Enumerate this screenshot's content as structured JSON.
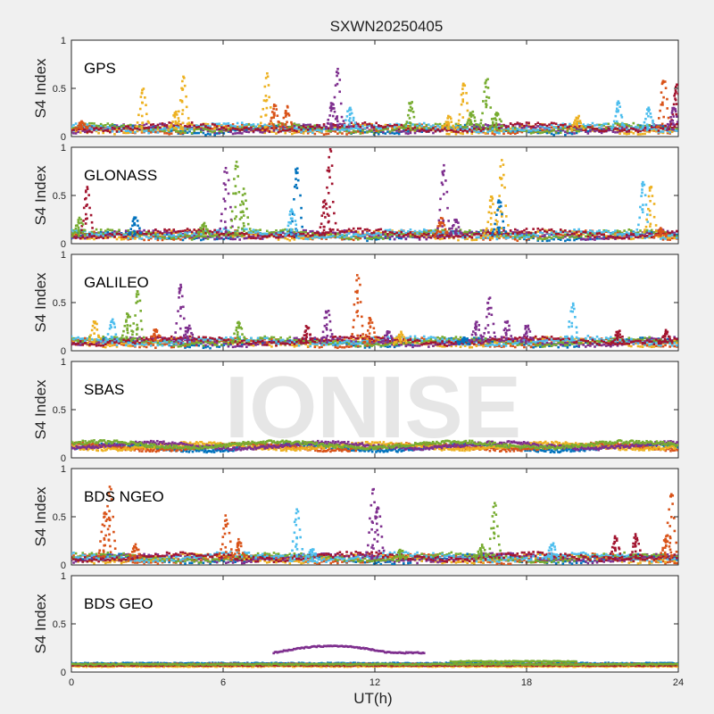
{
  "title": "SXWN20250405",
  "xlabel": "UT(h)",
  "watermark": "IONISE",
  "colors": {
    "background": "#f0f0f0",
    "axes_bg": "#ffffff",
    "series": [
      "#0072BD",
      "#D95319",
      "#EDB120",
      "#7E2F8E",
      "#77AC30",
      "#4DBEEE",
      "#A2142F"
    ]
  },
  "chart_data": [
    {
      "type": "scatter",
      "panel": "GPS",
      "ylabel": "S4 Index",
      "xlim": [
        0,
        24
      ],
      "ylim": [
        0,
        1
      ],
      "xticks": [
        0,
        6,
        12,
        18,
        24
      ],
      "yticks": [
        0,
        0.5,
        1
      ],
      "baseline": 0.07,
      "spikes": [
        [
          0.4,
          0.15,
          1
        ],
        [
          2.8,
          0.5,
          2
        ],
        [
          4.4,
          0.62,
          2
        ],
        [
          4.1,
          0.25,
          2
        ],
        [
          7.7,
          0.65,
          2
        ],
        [
          8.0,
          0.32,
          1
        ],
        [
          8.5,
          0.3,
          1
        ],
        [
          10.5,
          0.7,
          3
        ],
        [
          10.3,
          0.35,
          3
        ],
        [
          11.0,
          0.3,
          5
        ],
        [
          13.4,
          0.35,
          4
        ],
        [
          14.9,
          0.2,
          2
        ],
        [
          15.5,
          0.55,
          2
        ],
        [
          15.8,
          0.25,
          4
        ],
        [
          16.4,
          0.6,
          4
        ],
        [
          16.8,
          0.25,
          4
        ],
        [
          20.0,
          0.2,
          2
        ],
        [
          21.6,
          0.35,
          5
        ],
        [
          22.8,
          0.3,
          5
        ],
        [
          23.4,
          0.58,
          1
        ],
        [
          23.9,
          0.55,
          6
        ],
        [
          23.8,
          0.3,
          3
        ]
      ]
    },
    {
      "type": "scatter",
      "panel": "GLONASS",
      "ylabel": "S4 Index",
      "xlim": [
        0,
        24
      ],
      "ylim": [
        0,
        1
      ],
      "xticks": [
        0,
        6,
        12,
        18,
        24
      ],
      "yticks": [
        0,
        0.5,
        1
      ],
      "baseline": 0.08,
      "spikes": [
        [
          0.6,
          0.58,
          6
        ],
        [
          0.3,
          0.25,
          4
        ],
        [
          2.5,
          0.28,
          0
        ],
        [
          5.2,
          0.2,
          4
        ],
        [
          6.1,
          0.78,
          3
        ],
        [
          6.5,
          0.85,
          4
        ],
        [
          6.8,
          0.55,
          4
        ],
        [
          8.9,
          0.78,
          0
        ],
        [
          8.7,
          0.35,
          5
        ],
        [
          10.2,
          0.98,
          6
        ],
        [
          10.0,
          0.45,
          6
        ],
        [
          14.7,
          0.8,
          3
        ],
        [
          14.6,
          0.25,
          1
        ],
        [
          15.2,
          0.25,
          3
        ],
        [
          16.6,
          0.5,
          2
        ],
        [
          17.0,
          0.87,
          2
        ],
        [
          16.9,
          0.45,
          0
        ],
        [
          22.6,
          0.62,
          5
        ],
        [
          22.9,
          0.6,
          2
        ],
        [
          23.3,
          0.15,
          1
        ]
      ]
    },
    {
      "type": "scatter",
      "panel": "GALILEO",
      "ylabel": "S4 Index",
      "xlim": [
        0,
        24
      ],
      "ylim": [
        0,
        1
      ],
      "xticks": [
        0,
        6,
        12,
        18,
        24
      ],
      "yticks": [
        0,
        0.5,
        1
      ],
      "baseline": 0.08,
      "spikes": [
        [
          0.9,
          0.3,
          2
        ],
        [
          1.6,
          0.32,
          5
        ],
        [
          2.2,
          0.4,
          4
        ],
        [
          2.6,
          0.62,
          4
        ],
        [
          3.3,
          0.22,
          1
        ],
        [
          4.3,
          0.68,
          3
        ],
        [
          4.6,
          0.25,
          3
        ],
        [
          6.6,
          0.3,
          4
        ],
        [
          9.3,
          0.25,
          6
        ],
        [
          10.1,
          0.42,
          3
        ],
        [
          11.3,
          0.8,
          1
        ],
        [
          11.8,
          0.35,
          1
        ],
        [
          12.5,
          0.2,
          3
        ],
        [
          13.0,
          0.18,
          2
        ],
        [
          15.5,
          0.12,
          0
        ],
        [
          16.0,
          0.3,
          3
        ],
        [
          16.5,
          0.55,
          3
        ],
        [
          17.2,
          0.3,
          3
        ],
        [
          18.0,
          0.25,
          3
        ],
        [
          19.8,
          0.5,
          5
        ],
        [
          21.6,
          0.2,
          6
        ],
        [
          23.5,
          0.2,
          6
        ]
      ]
    },
    {
      "type": "scatter",
      "panel": "SBAS",
      "ylabel": "S4 Index",
      "xlim": [
        0,
        24
      ],
      "ylim": [
        0,
        1
      ],
      "xticks": [
        0,
        6,
        12,
        18,
        24
      ],
      "yticks": [
        0,
        0.5,
        1
      ],
      "baseline": 0.12,
      "spikes": []
    },
    {
      "type": "scatter",
      "panel": "BDS NGEO",
      "ylabel": "S4 Index",
      "xlim": [
        0,
        24
      ],
      "ylim": [
        0,
        1
      ],
      "xticks": [
        0,
        6,
        12,
        18,
        24
      ],
      "yticks": [
        0,
        0.5,
        1
      ],
      "baseline": 0.06,
      "spikes": [
        [
          1.3,
          0.55,
          1
        ],
        [
          1.5,
          0.8,
          1
        ],
        [
          2.5,
          0.2,
          1
        ],
        [
          6.1,
          0.5,
          1
        ],
        [
          6.6,
          0.25,
          1
        ],
        [
          8.9,
          0.57,
          5
        ],
        [
          9.5,
          0.15,
          5
        ],
        [
          11.9,
          0.8,
          3
        ],
        [
          12.1,
          0.6,
          3
        ],
        [
          13.0,
          0.15,
          4
        ],
        [
          16.2,
          0.2,
          4
        ],
        [
          16.7,
          0.65,
          4
        ],
        [
          19.0,
          0.22,
          5
        ],
        [
          21.5,
          0.28,
          6
        ],
        [
          22.3,
          0.3,
          6
        ],
        [
          23.7,
          0.75,
          1
        ],
        [
          23.5,
          0.3,
          1
        ]
      ]
    },
    {
      "type": "scatter",
      "panel": "BDS GEO",
      "ylabel": "S4 Index",
      "xlim": [
        0,
        24
      ],
      "ylim": [
        0,
        1
      ],
      "xticks": [
        0,
        6,
        12,
        18,
        24
      ],
      "yticks": [
        0,
        0.5,
        1
      ],
      "geo_levels": [
        [
          0.09,
          0
        ],
        [
          0.08,
          1
        ],
        [
          0.06,
          2
        ],
        [
          0.07,
          6
        ],
        [
          0.08,
          4
        ]
      ],
      "geo_arc": {
        "start": 8.0,
        "end": 14.0,
        "low": 0.2,
        "high": 0.27,
        "color_index": 3
      },
      "geo_bump": {
        "start": 15.0,
        "end": 20.0,
        "value": 0.11,
        "color_index": 4
      }
    }
  ]
}
